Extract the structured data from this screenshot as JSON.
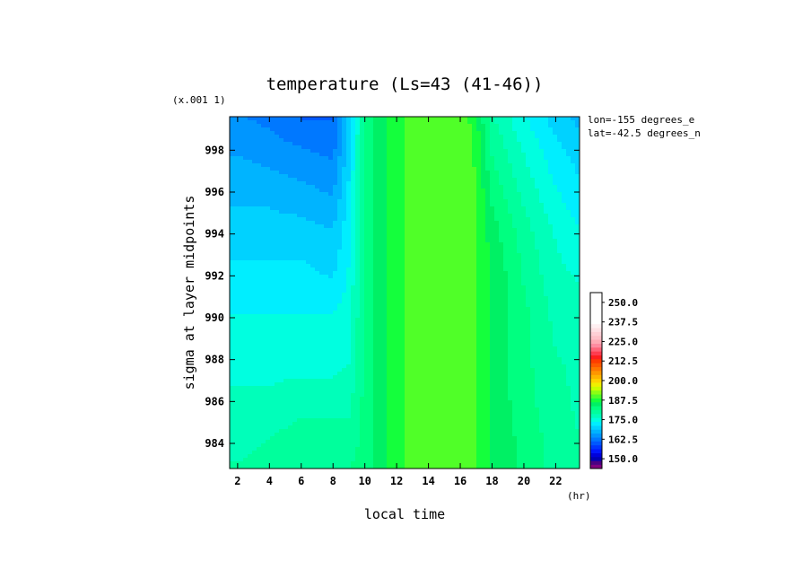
{
  "chart_data": {
    "type": "heatmap",
    "title": "temperature (Ls=43 (41-46))",
    "xlabel": "local time",
    "ylabel": "sigma at layer midpoints",
    "x_units": "(hr)",
    "y_scale_note": "(x.001 1)",
    "annotations": [
      "lon=-155 degrees_e",
      "lat=-42.5 degrees_n"
    ],
    "xlim": [
      1.5,
      23.5
    ],
    "ylim": [
      999.6,
      982.8
    ],
    "x_ticks": [
      2,
      4,
      6,
      8,
      10,
      12,
      14,
      16,
      18,
      20,
      22
    ],
    "x_tick_labels": [
      "2",
      "4",
      "6",
      "8",
      "10",
      "12",
      "14",
      "16",
      "18",
      "20",
      "22"
    ],
    "y_ticks": [
      984,
      986,
      988,
      990,
      992,
      994,
      996,
      998
    ],
    "y_tick_labels": [
      "984",
      "986",
      "988",
      "990",
      "992",
      "994",
      "996",
      "998"
    ],
    "x": [
      1.5,
      2,
      4,
      6,
      8,
      9,
      10,
      11,
      12,
      13,
      14,
      16,
      17,
      18,
      20,
      22,
      23.5
    ],
    "y": [
      982.8,
      984,
      986,
      988,
      990,
      992,
      994,
      996,
      998,
      999.6
    ],
    "z": [
      [
        179,
        179,
        180,
        180,
        181,
        181,
        183,
        185,
        188,
        190,
        191,
        191,
        189,
        186,
        183,
        180,
        179
      ],
      [
        178,
        178,
        179,
        180,
        180,
        180,
        182,
        185,
        188,
        190,
        191,
        191,
        189,
        186,
        183,
        180,
        179
      ],
      [
        177,
        177,
        177,
        178,
        178,
        178,
        182,
        185,
        188,
        190,
        191,
        191,
        189,
        186,
        182,
        180,
        178
      ],
      [
        175,
        175,
        175,
        175,
        175,
        176,
        182,
        185,
        188,
        190,
        191,
        191,
        189,
        186,
        182,
        179,
        178
      ],
      [
        174,
        174,
        174,
        174,
        174,
        175,
        182,
        185,
        188,
        190,
        191,
        191,
        189,
        186,
        182,
        178,
        177
      ],
      [
        172,
        172,
        172,
        172,
        171,
        174,
        182,
        185,
        188,
        190,
        191,
        191,
        189,
        186,
        181,
        177,
        176
      ],
      [
        170,
        170,
        170,
        170,
        169,
        173,
        182,
        185,
        188,
        190,
        191,
        191,
        189,
        185,
        180,
        176,
        174
      ],
      [
        168,
        168,
        168,
        167,
        166,
        172,
        182,
        185,
        188,
        190,
        191,
        191,
        189,
        183,
        178,
        174,
        172
      ],
      [
        166,
        166,
        165,
        164,
        163,
        170,
        182,
        185,
        188,
        190,
        191,
        191,
        188,
        181,
        176,
        172,
        170
      ],
      [
        164,
        164,
        163,
        161,
        161,
        169,
        182,
        185,
        188,
        190,
        191,
        191,
        187,
        179,
        174,
        170,
        168
      ]
    ],
    "colorbar": {
      "min": 143.75,
      "max": 256.25,
      "step": 2.5,
      "labels": [
        "250.0",
        "237.5",
        "225.0",
        "212.5",
        "200.0",
        "187.5",
        "175.0",
        "162.5",
        "150.0"
      ],
      "label_values": [
        250,
        237.5,
        225,
        212.5,
        200,
        187.5,
        175,
        162.5,
        150
      ],
      "colors": [
        "#800080",
        "#4b0082",
        "#0000b4",
        "#0000dc",
        "#0014ff",
        "#0036ff",
        "#0058ff",
        "#0078ff",
        "#0096ff",
        "#00b4ff",
        "#00d2ff",
        "#00eeff",
        "#00ffe0",
        "#00ffba",
        "#00ff9c",
        "#00ff80",
        "#00f064",
        "#14ff3c",
        "#50ff28",
        "#8cff14",
        "#c8ff00",
        "#f0f000",
        "#ffd200",
        "#ffb400",
        "#ff9600",
        "#ff7800",
        "#ff5a00",
        "#ff3c00",
        "#ff1e1e",
        "#ff3c50",
        "#ff6478",
        "#ff8ca0",
        "#ffaab4",
        "#ffc0c8",
        "#ffd0d6",
        "#ffe0e4",
        "#fff0f2",
        "#ffffff",
        "#ffffff",
        "#ffffff",
        "#ffffff",
        "#ffffff",
        "#ffffff",
        "#ffffff",
        "#ffffff"
      ]
    },
    "grid": false,
    "legend": "colorbar-right"
  }
}
